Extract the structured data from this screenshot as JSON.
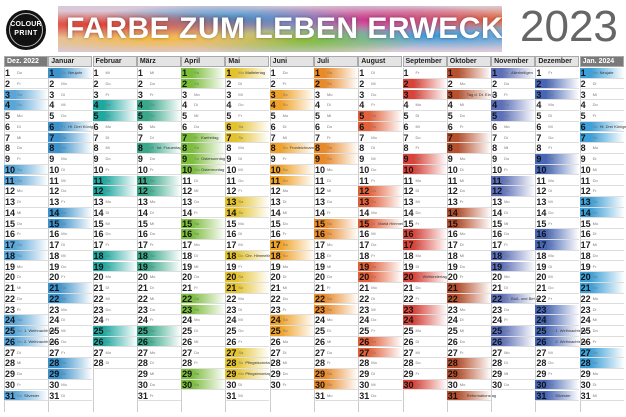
{
  "header": {
    "logo_line1": "COLOUR",
    "logo_line2": "PRINT",
    "banner_title": "FARBE ZUM LEBEN ERWECKEN",
    "year": "2023"
  },
  "weekdays": [
    "Mo",
    "Di",
    "Mi",
    "Do",
    "Fr",
    "Sa",
    "So"
  ],
  "months": [
    {
      "name": "Dez. 2022",
      "days": 31,
      "start": 3,
      "color": "#5aa6d8",
      "highlight": true,
      "holidays": {
        "25": "1. Weihnachtstag",
        "26": "2. Weihnachtstag",
        "31": "Silvester"
      }
    },
    {
      "name": "Januar",
      "days": 31,
      "start": 6,
      "color": "#3c92cc",
      "highlight": false,
      "holidays": {
        "1": "Neujahr",
        "6": "Hl. Drei Könige"
      }
    },
    {
      "name": "Februar",
      "days": 28,
      "start": 2,
      "color": "#1fa8a0",
      "highlight": false,
      "holidays": {}
    },
    {
      "name": "März",
      "days": 31,
      "start": 2,
      "color": "#39a88a",
      "highlight": false,
      "holidays": {
        "8": "Int. Frauentag"
      }
    },
    {
      "name": "April",
      "days": 30,
      "start": 5,
      "color": "#7cbd3c",
      "highlight": false,
      "holidays": {
        "7": "Karfreitag",
        "9": "Ostersonntag",
        "10": "Ostermontag"
      }
    },
    {
      "name": "Mai",
      "days": 31,
      "start": 0,
      "color": "#e3c22d",
      "highlight": false,
      "holidays": {
        "1": "Maifeiertag",
        "18": "Chr. Himmelfahrt",
        "28": "Pfingstsonntag",
        "29": "Pfingstmontag"
      }
    },
    {
      "name": "Juni",
      "days": 30,
      "start": 3,
      "color": "#f0a32b",
      "highlight": false,
      "holidays": {
        "8": "Fronleichnam"
      }
    },
    {
      "name": "Juli",
      "days": 31,
      "start": 5,
      "color": "#e98a2a",
      "highlight": false,
      "holidays": {}
    },
    {
      "name": "August",
      "days": 31,
      "start": 1,
      "color": "#e2603a",
      "highlight": false,
      "holidays": {
        "15": "Mariä Himmelf."
      }
    },
    {
      "name": "September",
      "days": 30,
      "start": 4,
      "color": "#d9443a",
      "highlight": false,
      "holidays": {
        "20": "Weltkindertag"
      }
    },
    {
      "name": "Oktober",
      "days": 31,
      "start": 6,
      "color": "#b8502d",
      "highlight": false,
      "holidays": {
        "3": "Tag d. Dt. Einheit",
        "31": "Reformationstag"
      }
    },
    {
      "name": "November",
      "days": 30,
      "start": 2,
      "color": "#5c6fb8",
      "highlight": false,
      "holidays": {
        "1": "Allerheiligen",
        "22": "Buß- und Bettag"
      }
    },
    {
      "name": "Dezember",
      "days": 31,
      "start": 4,
      "color": "#4766b5",
      "highlight": false,
      "holidays": {
        "25": "1. Weihnachtstag",
        "26": "2. Weihnachtstag",
        "31": "Silvester"
      }
    },
    {
      "name": "Jan. 2024",
      "days": 31,
      "start": 0,
      "color": "#3da0d8",
      "highlight": true,
      "holidays": {
        "1": "Neujahr",
        "6": "Hl. Drei Könige"
      }
    }
  ]
}
